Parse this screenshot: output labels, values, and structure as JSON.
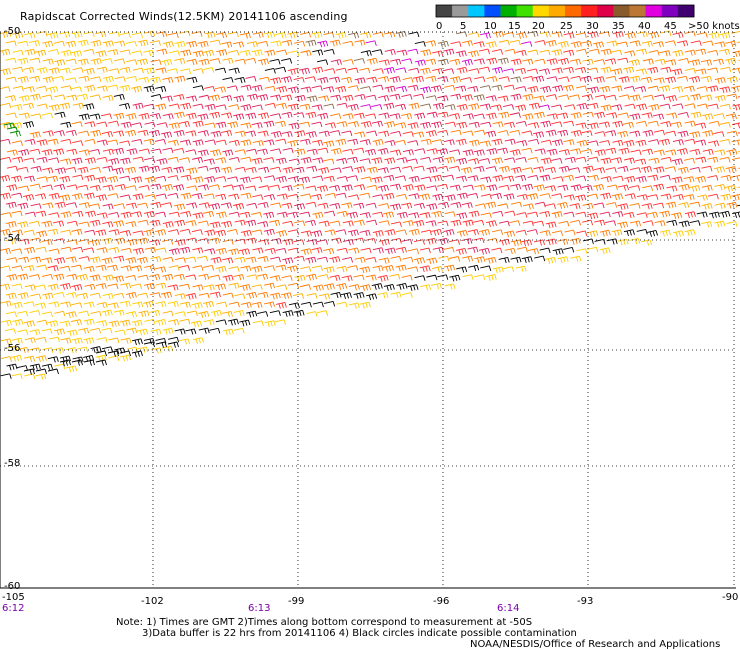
{
  "title": "Rapidscat Corrected Winds(12.5KM) 20141106 ascending",
  "colorbar": {
    "labels": [
      "0",
      "5",
      "10",
      "15",
      "20",
      "25",
      "30",
      "35",
      "40",
      "45",
      ">50 knots"
    ],
    "colors": [
      "#444444",
      "#9a9a9a",
      "#00c8ff",
      "#0050ff",
      "#00b000",
      "#40e000",
      "#ffd800",
      "#ffaa00",
      "#ff6a00",
      "#ff2020",
      "#e0004a",
      "#8a5a2a",
      "#bb7733",
      "#e000e0",
      "#8000c0",
      "#400070"
    ]
  },
  "map": {
    "lon_ticks": [
      "-105",
      "-102",
      "-99",
      "-96",
      "-93",
      "-90"
    ],
    "lat_ticks": [
      "-50",
      "-54",
      "-56",
      "-58",
      "-60"
    ],
    "times": [
      "6:12",
      "6:13",
      "6:14"
    ]
  },
  "notes": {
    "line1": "Note: 1) Times are GMT 2)Times along bottom correspond to measurement at -50S",
    "line2": "3)Data buffer is 22 hrs from 20141106 4) Black circles indicate possible contamination",
    "credit": "NOAA/NESDIS/Office of Research and Applications"
  },
  "legend_colors": {
    "black": "#000000",
    "yellow": "#ffcc00",
    "gold": "#ffb000",
    "orange": "#ff7a00",
    "red": "#ff3030",
    "crimson": "#e0205a",
    "magenta": "#d000d0",
    "brown": "#8a6a4a",
    "green": "#008800"
  }
}
